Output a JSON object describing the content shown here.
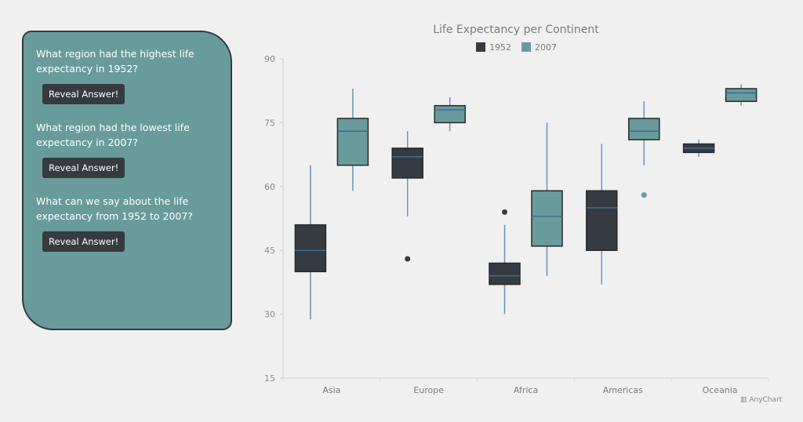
{
  "panel": {
    "questions": [
      {
        "text": "What region had the highest life expectancy in 1952?",
        "button": "Reveal Answer!"
      },
      {
        "text": "What region had the lowest life expectancy in 2007?",
        "button": "Reveal Answer!"
      },
      {
        "text": "What can we say about the life expectancy from 1952 to 2007?",
        "button": "Reveal Answer!"
      }
    ]
  },
  "credit": "AnyChart",
  "chart_data": {
    "type": "box",
    "title": "Life Expectancy per Continent",
    "categories": [
      "Asia",
      "Europe",
      "Africa",
      "Americas",
      "Oceania"
    ],
    "ylim": [
      15,
      90
    ],
    "yticks": [
      "15",
      "30",
      "45",
      "60",
      "75",
      "90"
    ],
    "legend": "top",
    "series": [
      {
        "name": "1952",
        "color": "#353b41",
        "boxes": [
          {
            "low": 28.8,
            "q1": 40,
            "median": 45,
            "q3": 51,
            "high": 65,
            "outliers": []
          },
          {
            "low": 53,
            "q1": 62,
            "median": 67,
            "q3": 69,
            "high": 73,
            "outliers": [
              43
            ]
          },
          {
            "low": 30,
            "q1": 37,
            "median": 39,
            "q3": 42,
            "high": 51,
            "outliers": [
              54
            ]
          },
          {
            "low": 37,
            "q1": 45,
            "median": 55,
            "q3": 59,
            "high": 70,
            "outliers": []
          },
          {
            "low": 67,
            "q1": 68,
            "median": 69,
            "q3": 70,
            "high": 71,
            "outliers": []
          }
        ]
      },
      {
        "name": "2007",
        "color": "#6a9b9c",
        "boxes": [
          {
            "low": 59,
            "q1": 65,
            "median": 73,
            "q3": 76,
            "high": 83,
            "outliers": []
          },
          {
            "low": 73,
            "q1": 75,
            "median": 78,
            "q3": 79,
            "high": 81,
            "outliers": []
          },
          {
            "low": 39,
            "q1": 46,
            "median": 53,
            "q3": 59,
            "high": 75,
            "outliers": []
          },
          {
            "low": 65,
            "q1": 71,
            "median": 73,
            "q3": 76,
            "high": 80,
            "outliers": [
              58
            ]
          },
          {
            "low": 79,
            "q1": 80,
            "median": 82,
            "q3": 83,
            "high": 84,
            "outliers": []
          }
        ]
      }
    ]
  }
}
